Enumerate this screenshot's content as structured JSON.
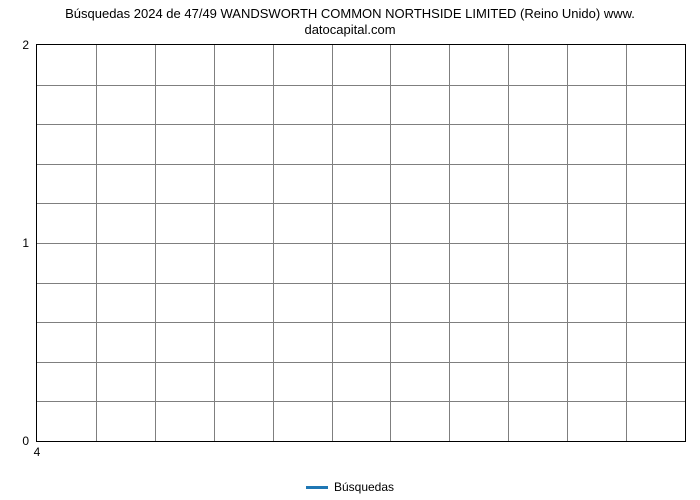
{
  "chart": {
    "type": "line",
    "title_line1": "Búsquedas 2024 de 47/49 WANDSWORTH COMMON NORTHSIDE LIMITED (Reino Unido) www.",
    "title_line2": "datocapital.com",
    "title_fontsize": 13,
    "title_color": "#000000",
    "background_color": "#ffffff",
    "border_color": "#000000",
    "grid_color": "#7f7f7f",
    "grid_major_on": true,
    "grid_minor_on": true,
    "x": {
      "lim": [
        4,
        4
      ],
      "major_ticks": [
        4
      ],
      "minor_tick_count": 10,
      "tick_fontsize": 12
    },
    "y": {
      "lim": [
        0,
        2
      ],
      "major_ticks": [
        0,
        1,
        2
      ],
      "minor_tick_count_between": 4,
      "tick_fontsize": 12
    },
    "series": [
      {
        "name": "Búsquedas",
        "color": "#1f77b4",
        "line_width": 2,
        "data_x": [
          4
        ],
        "data_y": [
          0
        ]
      }
    ],
    "legend": {
      "position": "bottom-center",
      "fontsize": 12,
      "label": "Búsquedas",
      "swatch_color": "#1f77b4"
    }
  }
}
